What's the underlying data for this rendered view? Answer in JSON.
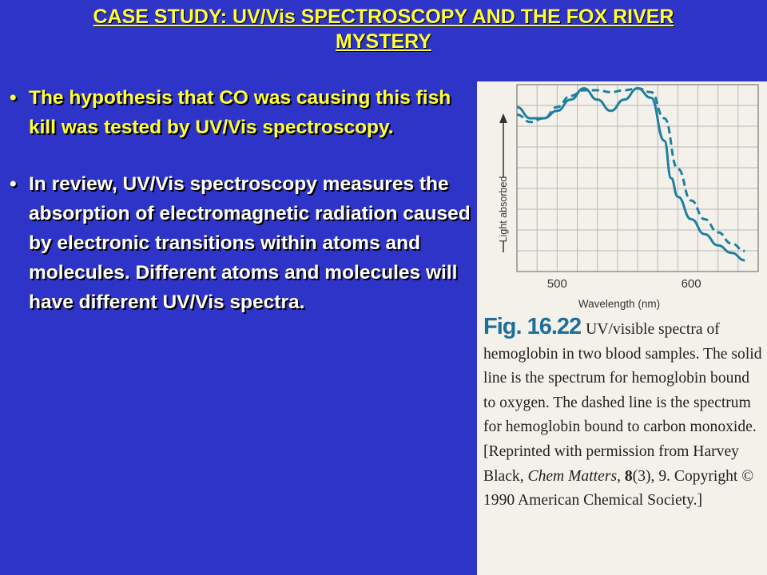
{
  "title": {
    "line1": "CASE STUDY: UV/Vis SPECTROSCOPY AND THE FOX RIVER",
    "line2": "MYSTERY"
  },
  "bullets": [
    {
      "text": "The hypothesis that CO was causing this fish kill was tested by UV/Vis spectroscopy."
    },
    {
      "text": "In review, UV/Vis spectroscopy measures the absorption of electromagnetic radiation caused by electronic transitions within atoms and molecules.  Different atoms and molecules will have different UV/Vis spectra."
    }
  ],
  "figure": {
    "label": "Fig. 16.22",
    "caption_lead": "UV/visible spectra of hemoglobin in two blood samples. The solid line is the spectrum for hemoglobin bound to oxygen. The dashed line is the spectrum for hemoglobin bound to carbon monoxide. [Reprinted with permission from Harvey Black, ",
    "caption_journal": "Chem Matters",
    "caption_comma": ", ",
    "caption_volume": "8",
    "caption_tail": "(3), 9. Copyright © 1990 American Chemical Society.]"
  },
  "chart_data": {
    "type": "line",
    "title": "",
    "xlabel": "Wavelength (nm)",
    "ylabel": "Light absorbed",
    "x_ticks": [
      500,
      600
    ],
    "xlim": [
      470,
      650
    ],
    "ylim": [
      0,
      1
    ],
    "grid": true,
    "series": [
      {
        "style": "solid",
        "color": "#1f7fa0",
        "x": [
          470,
          480,
          490,
          500,
          510,
          520,
          530,
          540,
          550,
          560,
          570,
          580,
          585,
          590,
          600,
          610,
          620,
          630,
          640
        ],
        "values": [
          0.88,
          0.82,
          0.82,
          0.86,
          0.92,
          0.98,
          0.92,
          0.86,
          0.92,
          0.98,
          0.93,
          0.7,
          0.5,
          0.4,
          0.28,
          0.2,
          0.14,
          0.1,
          0.06
        ]
      },
      {
        "style": "dashed",
        "color": "#1f7fa0",
        "x": [
          470,
          480,
          490,
          500,
          510,
          520,
          530,
          540,
          550,
          560,
          570,
          580,
          590,
          600,
          610,
          620,
          630,
          640
        ],
        "values": [
          0.84,
          0.8,
          0.82,
          0.88,
          0.94,
          0.97,
          0.97,
          0.96,
          0.97,
          0.98,
          0.96,
          0.82,
          0.55,
          0.38,
          0.28,
          0.21,
          0.15,
          0.11
        ]
      }
    ]
  }
}
